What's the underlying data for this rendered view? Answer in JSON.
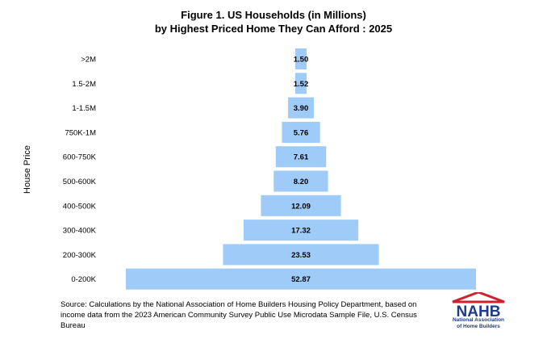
{
  "title": {
    "line1": "Figure 1. US Households (in Millions)",
    "line2": "by Highest Priced Home They Can Afford : 2025"
  },
  "chart_data": {
    "type": "bar",
    "orientation": "horizontal-centered",
    "title": "Figure 1. US Households (in Millions) by Highest Priced Home They Can Afford : 2025",
    "xlabel": "",
    "ylabel": "House Price",
    "categories": [
      ">2M",
      "1.5-2M",
      "1-1.5M",
      "750K-1M",
      "600-750K",
      "500-600K",
      "400-500K",
      "300-400K",
      "200-300K",
      "0-200K"
    ],
    "values": [
      1.5,
      1.52,
      3.9,
      5.76,
      7.61,
      8.2,
      12.09,
      17.32,
      23.53,
      52.87
    ],
    "value_labels": [
      "1.50",
      "1.52",
      "3.90",
      "5.76",
      "7.61",
      "8.20",
      "12.09",
      "17.32",
      "23.53",
      "52.87"
    ],
    "bar_color": "#9ecbf7"
  },
  "source": "Source: Calculations by the National Association of Home Builders Housing Policy Department, based on income data from the 2023 American Community Survey Public Use Microdata Sample File, U.S. Census Bureau",
  "logo": {
    "mark": "NAHB",
    "org_line1": "National Association",
    "org_line2": "of Home Builders",
    "color_blue": "#1f3c88",
    "color_red": "#d0202e"
  }
}
